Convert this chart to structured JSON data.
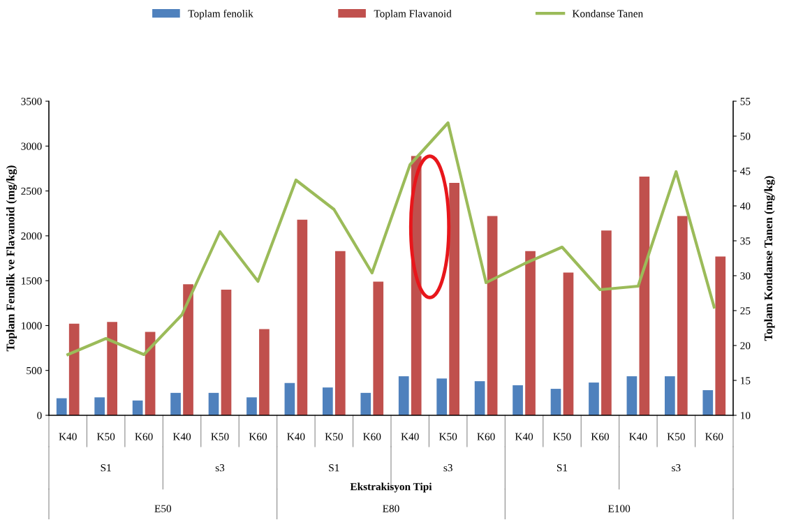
{
  "chart_data": {
    "type": "bar",
    "xlabel": "Ekstrakisyon Tipi",
    "ylabel": "Toplam Fenolik ve Flavanoid (mg/kg)",
    "y2label": "Toplam Kondanse Tanen (mg/kg)",
    "categories": [
      "K40",
      "K50",
      "K60",
      "K40",
      "K50",
      "K60",
      "K40",
      "K50",
      "K60",
      "K40",
      "K50",
      "K60",
      "K40",
      "K50",
      "K60",
      "K40",
      "K50",
      "K60"
    ],
    "series": [
      {
        "name": "Toplam fenolik",
        "color": "#4f81bd",
        "values": [
          190,
          200,
          165,
          250,
          250,
          200,
          360,
          310,
          250,
          435,
          410,
          380,
          335,
          295,
          365,
          435,
          435,
          280
        ]
      },
      {
        "name": "Toplam Flavanoid",
        "color": "#c0504d",
        "values": [
          1020,
          1040,
          930,
          1460,
          1400,
          960,
          2180,
          1830,
          1490,
          2890,
          2590,
          2220,
          1830,
          1590,
          2060,
          2660,
          2220,
          1770
        ]
      },
      {
        "name": "Kondanse Tanen",
        "color": "#9bbb59",
        "type": "line",
        "axis": "y2",
        "values": [
          18.7,
          21.0,
          18.7,
          24.4,
          36.3,
          29.2,
          43.7,
          39.5,
          30.4,
          45.9,
          51.9,
          29.0,
          31.7,
          34.1,
          28.0,
          28.5,
          44.9,
          25.5
        ]
      }
    ],
    "ylim": [
      0,
      3500
    ],
    "yticks": [
      0,
      500,
      1000,
      1500,
      2000,
      2500,
      3000,
      3500
    ],
    "y2lim": [
      10,
      55
    ],
    "y2ticks": [
      10,
      15,
      20,
      25,
      30,
      35,
      40,
      45,
      50,
      55
    ],
    "annotations": [
      "S1",
      "s3",
      "S1",
      "s3",
      "S1",
      "s3",
      "E50",
      "E80",
      "E100"
    ],
    "legend": "top",
    "grid": false,
    "marker": "none"
  }
}
